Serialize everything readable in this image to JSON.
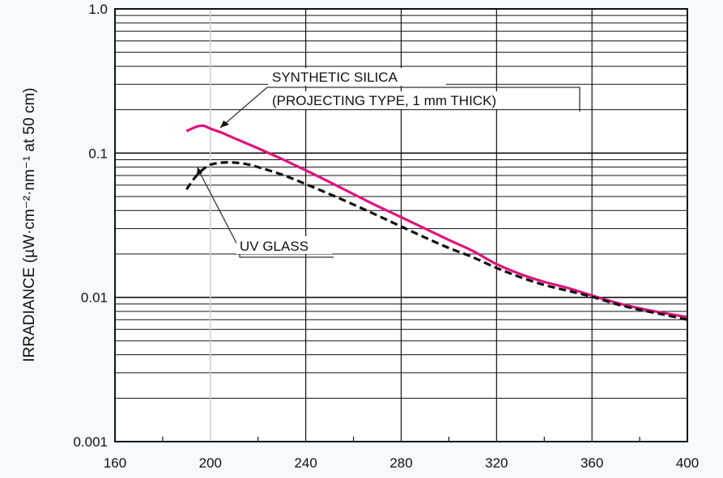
{
  "chart_data": {
    "type": "line",
    "title": "",
    "xlabel": "",
    "ylabel": "IRRADIANCE (µW·cm⁻²·nm⁻¹ at 50 cm)",
    "xlim": [
      160,
      400
    ],
    "ylim": [
      0.001,
      1.0
    ],
    "yscale": "log",
    "grid": true,
    "x_ticks": [
      "160",
      "200",
      "240",
      "280",
      "320",
      "360",
      "400"
    ],
    "y_ticks": [
      "0.001",
      "0.01",
      "0.1",
      "1.0"
    ],
    "series": [
      {
        "name": "SYNTHETIC SILICA (PROJECTING TYPE, 1 mm THICK)",
        "color": "#e0137e",
        "dash": "solid",
        "x": [
          190,
          194,
          197,
          200,
          205,
          210,
          220,
          230,
          240,
          250,
          260,
          270,
          280,
          290,
          300,
          310,
          320,
          330,
          340,
          350,
          360,
          370,
          380,
          390,
          400
        ],
        "y": [
          0.142,
          0.152,
          0.155,
          0.148,
          0.138,
          0.127,
          0.108,
          0.091,
          0.076,
          0.063,
          0.052,
          0.043,
          0.036,
          0.03,
          0.025,
          0.021,
          0.017,
          0.0145,
          0.0128,
          0.0116,
          0.0103,
          0.0092,
          0.0084,
          0.0078,
          0.0073
        ]
      },
      {
        "name": "UV GLASS",
        "color": "#111111",
        "dash": "dashed",
        "x": [
          190,
          193,
          196,
          200,
          205,
          210,
          215,
          220,
          230,
          240,
          250,
          260,
          270,
          280,
          290,
          300,
          310,
          320,
          330,
          340,
          350,
          360,
          370,
          380,
          390,
          400
        ],
        "y": [
          0.056,
          0.066,
          0.075,
          0.083,
          0.086,
          0.086,
          0.084,
          0.08,
          0.071,
          0.061,
          0.052,
          0.044,
          0.037,
          0.031,
          0.026,
          0.022,
          0.019,
          0.016,
          0.0138,
          0.0122,
          0.0111,
          0.0101,
          0.009,
          0.0082,
          0.0076,
          0.007
        ]
      }
    ],
    "annotations": [
      {
        "lines": [
          "SYNTHETIC SILICA",
          "(PROJECTING TYPE, 1 mm THICK)"
        ],
        "target_x": 197,
        "target_y": 0.155
      },
      {
        "lines": [
          "UV GLASS"
        ],
        "target_x": 195,
        "target_y": 0.078
      }
    ]
  }
}
